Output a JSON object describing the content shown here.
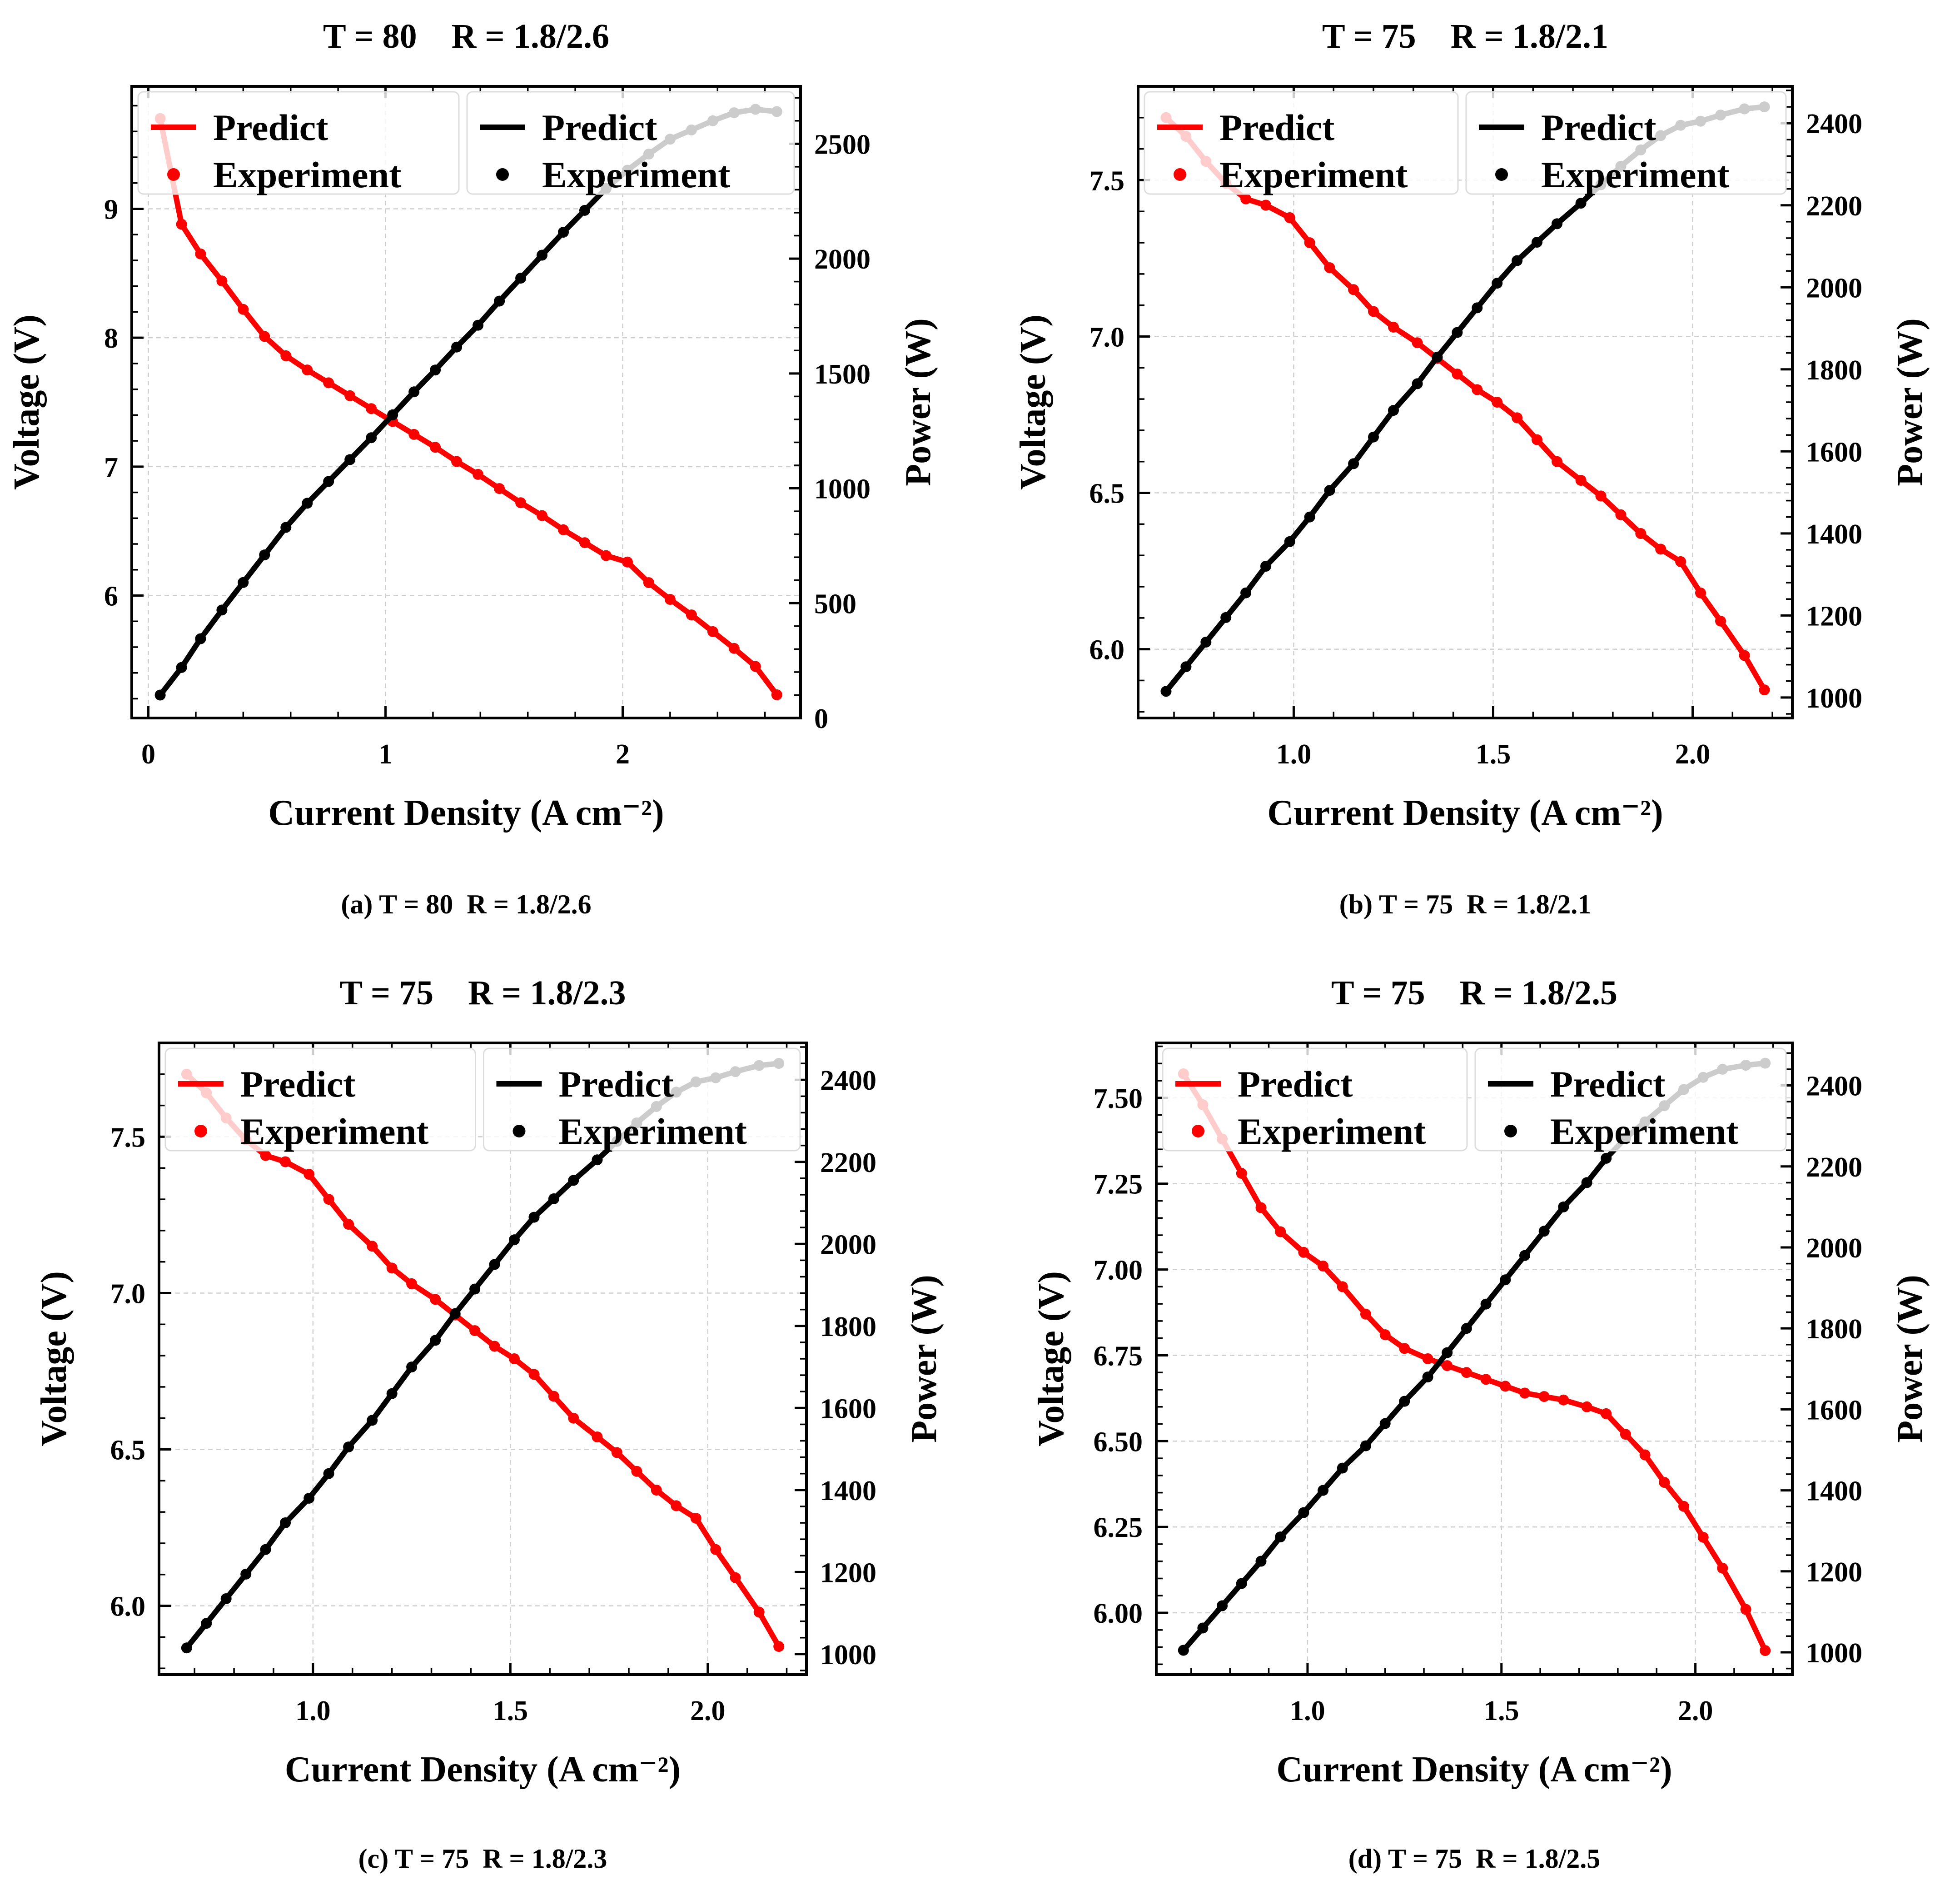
{
  "chart_data": [
    {
      "type": "line",
      "id": "a",
      "title": "T = 80    R = 1.8/2.6",
      "caption": "(a) T = 80  R = 1.8/2.6",
      "xlabel": "Current Density (A cm⁻²)",
      "ylabel_left": "Voltage (V)",
      "ylabel_right": "Power (W)",
      "xlim": [
        -0.07,
        2.75
      ],
      "ylim_left": [
        5.05,
        9.95
      ],
      "ylim_right": [
        0,
        2750
      ],
      "xticks": [
        0,
        1,
        2
      ],
      "xtick_labels": [
        "0",
        "1",
        "2"
      ],
      "yticks_left": [
        6,
        7,
        8,
        9
      ],
      "ytick_labels_left": [
        "6",
        "7",
        "8",
        "9"
      ],
      "yticks_right": [
        0,
        500,
        1000,
        1500,
        2000,
        2500
      ],
      "ytick_labels_right": [
        "0",
        "500",
        "1000",
        "1500",
        "2000",
        "2500"
      ],
      "legend_left": {
        "line_label": "Predict",
        "marker_label": "Experiment"
      },
      "legend_right": {
        "line_label": "Predict",
        "marker_label": "Experiment"
      },
      "series": [
        {
          "name": "Voltage (Predict / Experiment)",
          "axis": "left",
          "color": "#ff0000",
          "x": [
            0.05,
            0.14,
            0.22,
            0.31,
            0.4,
            0.49,
            0.58,
            0.67,
            0.76,
            0.85,
            0.94,
            1.03,
            1.12,
            1.21,
            1.3,
            1.39,
            1.48,
            1.57,
            1.66,
            1.75,
            1.84,
            1.93,
            2.02,
            2.11,
            2.2,
            2.29,
            2.38,
            2.47,
            2.56,
            2.65
          ],
          "y": [
            9.7,
            8.88,
            8.65,
            8.44,
            8.22,
            8.01,
            7.86,
            7.75,
            7.65,
            7.55,
            7.45,
            7.35,
            7.25,
            7.15,
            7.04,
            6.94,
            6.83,
            6.72,
            6.62,
            6.51,
            6.41,
            6.31,
            6.26,
            6.1,
            5.97,
            5.85,
            5.72,
            5.59,
            5.45,
            5.23
          ]
        },
        {
          "name": "Power (Predict / Experiment)",
          "axis": "right",
          "color": "#000000",
          "x": [
            0.05,
            0.14,
            0.22,
            0.31,
            0.4,
            0.49,
            0.58,
            0.67,
            0.76,
            0.85,
            0.94,
            1.03,
            1.12,
            1.21,
            1.3,
            1.39,
            1.48,
            1.57,
            1.66,
            1.75,
            1.84,
            1.93,
            2.02,
            2.11,
            2.2,
            2.29,
            2.38,
            2.47,
            2.56,
            2.65
          ],
          "y": [
            100,
            220,
            345,
            470,
            590,
            710,
            830,
            935,
            1030,
            1125,
            1220,
            1320,
            1420,
            1515,
            1615,
            1710,
            1815,
            1915,
            2015,
            2115,
            2210,
            2305,
            2385,
            2455,
            2520,
            2560,
            2600,
            2635,
            2650,
            2640
          ]
        }
      ]
    },
    {
      "type": "line",
      "id": "b",
      "title": "T = 75    R = 1.8/2.1",
      "caption": "(b) T = 75  R = 1.8/2.1",
      "xlabel": "Current Density (A cm⁻²)",
      "ylabel_left": "Voltage (V)",
      "ylabel_right": "Power (W)",
      "xlim": [
        0.61,
        2.25
      ],
      "ylim_left": [
        5.78,
        7.8
      ],
      "ylim_right": [
        950,
        2490
      ],
      "xticks": [
        1.0,
        1.5,
        2.0
      ],
      "xtick_labels": [
        "1.0",
        "1.5",
        "2.0"
      ],
      "yticks_left": [
        6.0,
        6.5,
        7.0,
        7.5
      ],
      "ytick_labels_left": [
        "6.0",
        "6.5",
        "7.0",
        "7.5"
      ],
      "yticks_right": [
        1000,
        1200,
        1400,
        1600,
        1800,
        2000,
        2200,
        2400
      ],
      "ytick_labels_right": [
        "1000",
        "1200",
        "1400",
        "1600",
        "1800",
        "2000",
        "2200",
        "2400"
      ],
      "legend_left": {
        "line_label": "Predict",
        "marker_label": "Experiment"
      },
      "legend_right": {
        "line_label": "Predict",
        "marker_label": "Experiment"
      },
      "series": [
        {
          "name": "Voltage (Predict / Experiment)",
          "axis": "left",
          "color": "#ff0000",
          "x": [
            0.68,
            0.73,
            0.78,
            0.83,
            0.88,
            0.93,
            0.99,
            1.04,
            1.09,
            1.15,
            1.2,
            1.25,
            1.31,
            1.36,
            1.41,
            1.46,
            1.51,
            1.56,
            1.61,
            1.66,
            1.72,
            1.77,
            1.82,
            1.87,
            1.92,
            1.97,
            2.02,
            2.07,
            2.13,
            2.18
          ],
          "y": [
            7.7,
            7.64,
            7.56,
            7.49,
            7.44,
            7.42,
            7.38,
            7.3,
            7.22,
            7.15,
            7.08,
            7.03,
            6.98,
            6.93,
            6.88,
            6.83,
            6.79,
            6.74,
            6.67,
            6.6,
            6.54,
            6.49,
            6.43,
            6.37,
            6.32,
            6.28,
            6.18,
            6.09,
            5.98,
            5.87
          ]
        },
        {
          "name": "Power (Predict / Experiment)",
          "axis": "right",
          "color": "#000000",
          "x": [
            0.68,
            0.73,
            0.78,
            0.83,
            0.88,
            0.93,
            0.99,
            1.04,
            1.09,
            1.15,
            1.2,
            1.25,
            1.31,
            1.36,
            1.41,
            1.46,
            1.51,
            1.56,
            1.61,
            1.66,
            1.72,
            1.77,
            1.82,
            1.87,
            1.92,
            1.97,
            2.02,
            2.07,
            2.13,
            2.18
          ],
          "y": [
            1015,
            1075,
            1135,
            1195,
            1255,
            1320,
            1380,
            1440,
            1505,
            1570,
            1635,
            1700,
            1765,
            1830,
            1890,
            1950,
            2010,
            2065,
            2110,
            2155,
            2205,
            2250,
            2295,
            2335,
            2370,
            2395,
            2405,
            2420,
            2435,
            2440
          ]
        }
      ]
    },
    {
      "type": "line",
      "id": "c",
      "title": "T = 75    R = 1.8/2.3",
      "caption": "(c) T = 75  R = 1.8/2.3",
      "xlabel": "Current Density (A cm⁻²)",
      "ylabel_left": "Voltage (V)",
      "ylabel_right": "Power (W)",
      "xlim": [
        0.61,
        2.25
      ],
      "ylim_left": [
        5.78,
        7.8
      ],
      "ylim_right": [
        950,
        2490
      ],
      "xticks": [
        1.0,
        1.5,
        2.0
      ],
      "xtick_labels": [
        "1.0",
        "1.5",
        "2.0"
      ],
      "yticks_left": [
        6.0,
        6.5,
        7.0,
        7.5
      ],
      "ytick_labels_left": [
        "6.0",
        "6.5",
        "7.0",
        "7.5"
      ],
      "yticks_right": [
        1000,
        1200,
        1400,
        1600,
        1800,
        2000,
        2200,
        2400
      ],
      "ytick_labels_right": [
        "1000",
        "1200",
        "1400",
        "1600",
        "1800",
        "2000",
        "2200",
        "2400"
      ],
      "legend_left": {
        "line_label": "Predict",
        "marker_label": "Experiment"
      },
      "legend_right": {
        "line_label": "Predict",
        "marker_label": "Experiment"
      },
      "series": [
        {
          "name": "Voltage (Predict / Experiment)",
          "axis": "left",
          "color": "#ff0000",
          "x": [
            0.68,
            0.73,
            0.78,
            0.83,
            0.88,
            0.93,
            0.99,
            1.04,
            1.09,
            1.15,
            1.2,
            1.25,
            1.31,
            1.36,
            1.41,
            1.46,
            1.51,
            1.56,
            1.61,
            1.66,
            1.72,
            1.77,
            1.82,
            1.87,
            1.92,
            1.97,
            2.02,
            2.07,
            2.13,
            2.18
          ],
          "y": [
            7.7,
            7.64,
            7.56,
            7.49,
            7.44,
            7.42,
            7.38,
            7.3,
            7.22,
            7.15,
            7.08,
            7.03,
            6.98,
            6.93,
            6.88,
            6.83,
            6.79,
            6.74,
            6.67,
            6.6,
            6.54,
            6.49,
            6.43,
            6.37,
            6.32,
            6.28,
            6.18,
            6.09,
            5.98,
            5.87
          ]
        },
        {
          "name": "Power (Predict / Experiment)",
          "axis": "right",
          "color": "#000000",
          "x": [
            0.68,
            0.73,
            0.78,
            0.83,
            0.88,
            0.93,
            0.99,
            1.04,
            1.09,
            1.15,
            1.2,
            1.25,
            1.31,
            1.36,
            1.41,
            1.46,
            1.51,
            1.56,
            1.61,
            1.66,
            1.72,
            1.77,
            1.82,
            1.87,
            1.92,
            1.97,
            2.02,
            2.07,
            2.13,
            2.18
          ],
          "y": [
            1015,
            1075,
            1135,
            1195,
            1255,
            1320,
            1380,
            1440,
            1505,
            1570,
            1635,
            1700,
            1765,
            1830,
            1890,
            1950,
            2010,
            2065,
            2110,
            2155,
            2205,
            2250,
            2295,
            2335,
            2370,
            2395,
            2405,
            2420,
            2435,
            2440
          ]
        }
      ]
    },
    {
      "type": "line",
      "id": "d",
      "title": "T = 75    R = 1.8/2.5",
      "caption": "(d) T = 75  R = 1.8/2.5",
      "xlabel": "Current Density (A cm⁻²)",
      "ylabel_left": "Voltage (V)",
      "ylabel_right": "Power (W)",
      "xlim": [
        0.61,
        2.25
      ],
      "ylim_left": [
        5.82,
        7.66
      ],
      "ylim_right": [
        945,
        2505
      ],
      "xticks": [
        1.0,
        1.5,
        2.0
      ],
      "xtick_labels": [
        "1.0",
        "1.5",
        "2.0"
      ],
      "yticks_left": [
        6.0,
        6.25,
        6.5,
        6.75,
        7.0,
        7.25,
        7.5
      ],
      "ytick_labels_left": [
        "6.00",
        "6.25",
        "6.50",
        "6.75",
        "7.00",
        "7.25",
        "7.50"
      ],
      "yticks_right": [
        1000,
        1200,
        1400,
        1600,
        1800,
        2000,
        2200,
        2400
      ],
      "ytick_labels_right": [
        "1000",
        "1200",
        "1400",
        "1600",
        "1800",
        "2000",
        "2200",
        "2400"
      ],
      "legend_left": {
        "line_label": "Predict",
        "marker_label": "Experiment"
      },
      "legend_right": {
        "line_label": "Predict",
        "marker_label": "Experiment"
      },
      "series": [
        {
          "name": "Voltage (Predict / Experiment)",
          "axis": "left",
          "color": "#ff0000",
          "x": [
            0.68,
            0.73,
            0.78,
            0.83,
            0.88,
            0.93,
            0.99,
            1.04,
            1.09,
            1.15,
            1.2,
            1.25,
            1.31,
            1.36,
            1.41,
            1.46,
            1.51,
            1.56,
            1.61,
            1.66,
            1.72,
            1.77,
            1.82,
            1.87,
            1.92,
            1.97,
            2.02,
            2.07,
            2.13,
            2.18
          ],
          "y": [
            7.57,
            7.48,
            7.38,
            7.28,
            7.18,
            7.11,
            7.05,
            7.01,
            6.95,
            6.87,
            6.81,
            6.77,
            6.74,
            6.72,
            6.7,
            6.68,
            6.66,
            6.64,
            6.63,
            6.62,
            6.6,
            6.58,
            6.52,
            6.46,
            6.38,
            6.31,
            6.22,
            6.13,
            6.01,
            5.89
          ]
        },
        {
          "name": "Power (Predict / Experiment)",
          "axis": "right",
          "color": "#000000",
          "x": [
            0.68,
            0.73,
            0.78,
            0.83,
            0.88,
            0.93,
            0.99,
            1.04,
            1.09,
            1.15,
            1.2,
            1.25,
            1.31,
            1.36,
            1.41,
            1.46,
            1.51,
            1.56,
            1.61,
            1.66,
            1.72,
            1.77,
            1.82,
            1.87,
            1.92,
            1.97,
            2.02,
            2.07,
            2.13,
            2.18
          ],
          "y": [
            1005,
            1060,
            1115,
            1170,
            1225,
            1285,
            1345,
            1400,
            1455,
            1510,
            1565,
            1620,
            1680,
            1740,
            1800,
            1860,
            1920,
            1980,
            2040,
            2100,
            2160,
            2220,
            2270,
            2310,
            2350,
            2390,
            2420,
            2440,
            2450,
            2455
          ]
        }
      ]
    }
  ]
}
